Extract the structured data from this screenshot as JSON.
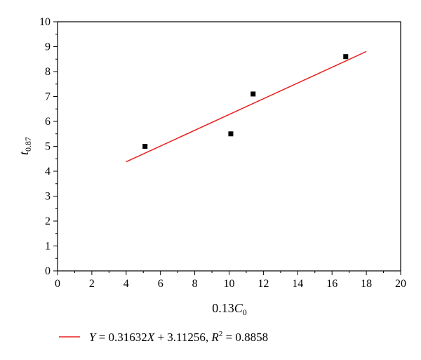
{
  "chart_data": {
    "type": "scatter",
    "xlabel": {
      "main": "0.13",
      "var": "C",
      "sub": "0"
    },
    "ylabel": {
      "var": "t",
      "sub": "0.87"
    },
    "xlim": [
      0,
      20
    ],
    "ylim": [
      0,
      10
    ],
    "xticks": [
      "0",
      "2",
      "4",
      "6",
      "8",
      "10",
      "12",
      "14",
      "16",
      "18",
      "20"
    ],
    "yticks": [
      "0",
      "1",
      "2",
      "3",
      "4",
      "5",
      "6",
      "7",
      "8",
      "9",
      "10"
    ],
    "grid": false,
    "points": [
      {
        "x": 5.1,
        "y": 5.0
      },
      {
        "x": 10.1,
        "y": 5.5
      },
      {
        "x": 11.4,
        "y": 7.1
      },
      {
        "x": 16.8,
        "y": 8.6
      }
    ],
    "fit_line": {
      "slope": 0.31632,
      "intercept": 3.11256,
      "x_range": [
        4,
        18
      ],
      "color": "#e8201e"
    },
    "marker_color": "#000000",
    "legend": {
      "position": "bottom",
      "y_var": "Y",
      "equals1": " = 0.31632",
      "x_var": "X",
      "plus": " + 3.11256, ",
      "r_var": "R",
      "r_sup": "2",
      "equals2": " = 0.8858"
    }
  }
}
